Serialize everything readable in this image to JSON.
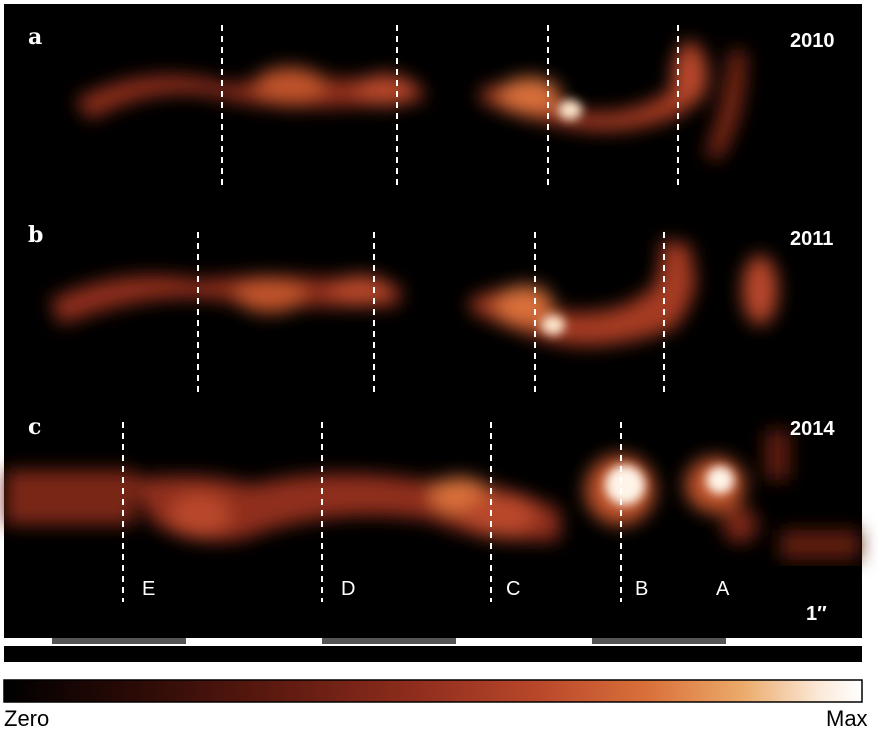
{
  "panels": [
    {
      "id": "a",
      "year": "2010"
    },
    {
      "id": "b",
      "year": "2011"
    },
    {
      "id": "c",
      "year": "2014"
    }
  ],
  "knots": [
    "E",
    "D",
    "C",
    "B",
    "A"
  ],
  "scale_bar_label": "1″",
  "colorbar": {
    "min_label": "Zero",
    "max_label": "Max",
    "colors": [
      "#000000",
      "#2a0a06",
      "#5e1a10",
      "#8f2d1d",
      "#b8472a",
      "#d9703a",
      "#ebaa6a",
      "#fbe9d8",
      "#ffffff"
    ]
  }
}
